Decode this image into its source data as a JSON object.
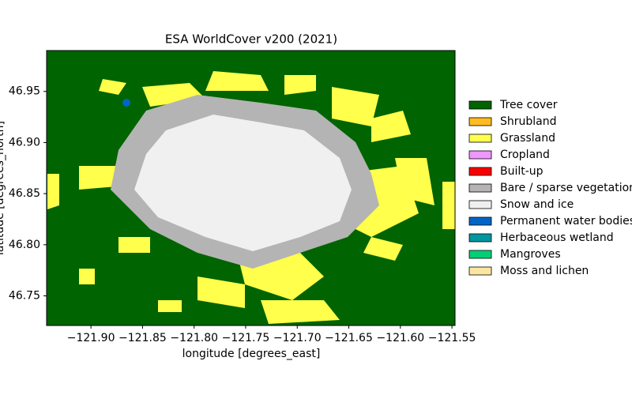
{
  "chart_data": {
    "type": "map",
    "title": "ESA WorldCover v200 (2021)",
    "xlabel": "longitude [degrees_east]",
    "ylabel": "latitude [degrees_north]",
    "xlim": [
      -121.943,
      -121.547
    ],
    "ylim": [
      46.721,
      46.99
    ],
    "xticks": [
      {
        "value": -121.9,
        "label": "−121.90"
      },
      {
        "value": -121.85,
        "label": "−121.85"
      },
      {
        "value": -121.8,
        "label": "−121.80"
      },
      {
        "value": -121.75,
        "label": "−121.75"
      },
      {
        "value": -121.7,
        "label": "−121.70"
      },
      {
        "value": -121.65,
        "label": "−121.65"
      },
      {
        "value": -121.6,
        "label": "−121.60"
      },
      {
        "value": -121.55,
        "label": "−121.55"
      }
    ],
    "yticks": [
      46.95,
      {
        "value": 46.9,
        "label": "46.90"
      },
      46.85,
      {
        "value": 46.8,
        "label": "46.80"
      },
      46.75
    ],
    "legend": [
      {
        "name": "Tree cover",
        "color": "#006400"
      },
      {
        "name": "Shrubland",
        "color": "#ffbb22"
      },
      {
        "name": "Grassland",
        "color": "#ffff4c"
      },
      {
        "name": "Cropland",
        "color": "#f096ff"
      },
      {
        "name": "Built-up",
        "color": "#fa0000"
      },
      {
        "name": "Bare / sparse vegetation",
        "color": "#b4b4b4"
      },
      {
        "name": "Snow and ice",
        "color": "#f0f0f0"
      },
      {
        "name": "Permanent water bodies",
        "color": "#0064c8"
      },
      {
        "name": "Herbaceous wetland",
        "color": "#0096a0"
      },
      {
        "name": "Mangroves",
        "color": "#00cf75"
      },
      {
        "name": "Moss and lichen",
        "color": "#fae6a0"
      }
    ]
  }
}
